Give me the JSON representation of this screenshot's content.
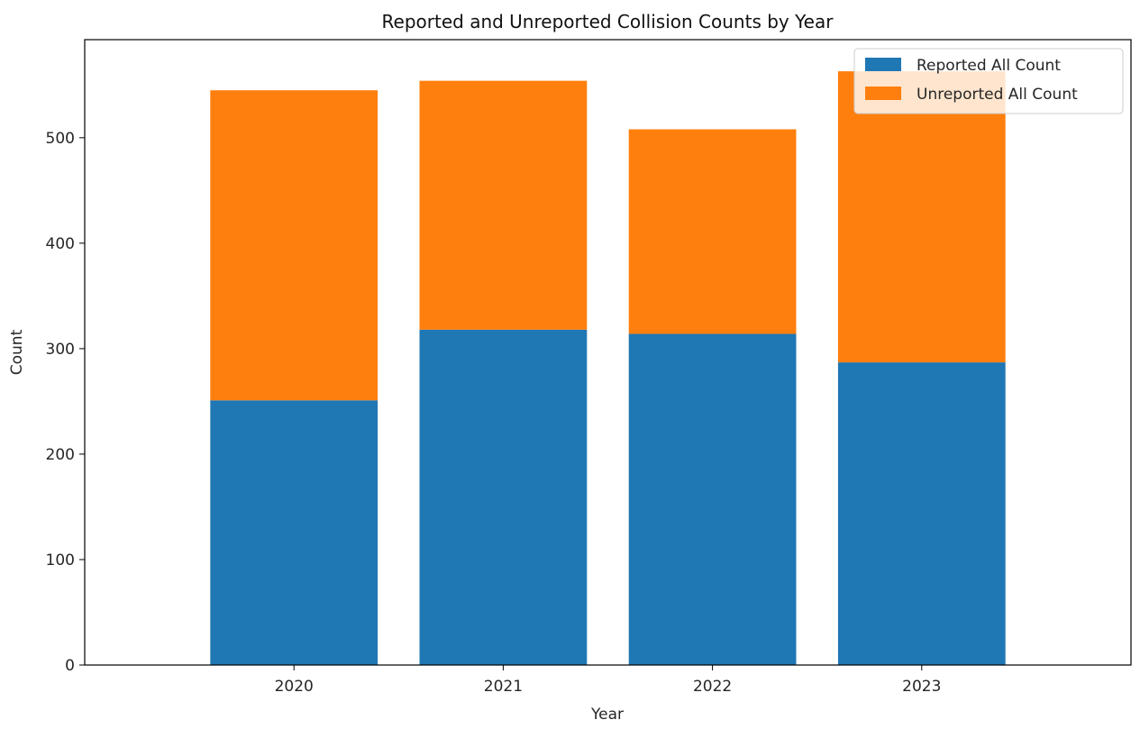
{
  "chart_data": {
    "type": "bar",
    "stacked": true,
    "title": "Reported and Unreported Collision Counts by Year",
    "xlabel": "Year",
    "ylabel": "Count",
    "categories": [
      "2020",
      "2021",
      "2022",
      "2023"
    ],
    "series": [
      {
        "name": "Reported All Count",
        "color": "#1f77b4",
        "values": [
          251,
          318,
          314,
          287
        ]
      },
      {
        "name": "Unreported All Count",
        "color": "#ff7f0e",
        "values": [
          294,
          236,
          194,
          276
        ]
      }
    ],
    "ylim": [
      0,
      593
    ],
    "yticks": [
      0,
      100,
      200,
      300,
      400,
      500
    ],
    "grid": false,
    "legend_position": "top-right"
  }
}
